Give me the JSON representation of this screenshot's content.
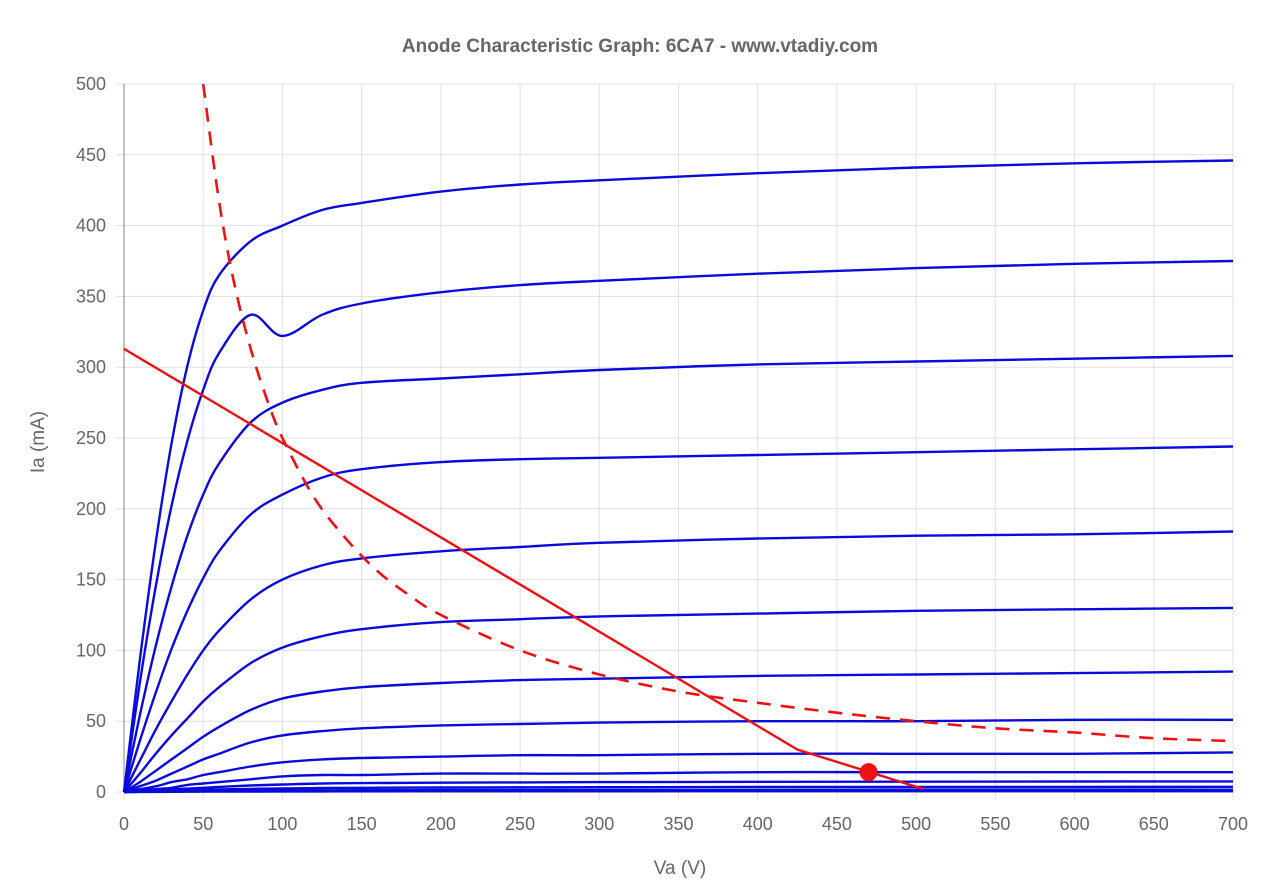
{
  "chart_data": {
    "type": "line",
    "title": "Anode Characteristic Graph: 6CA7 - www.vtadiy.com",
    "xlabel": "Va (V)",
    "ylabel": "Ia (mA)",
    "xlim": [
      0,
      700
    ],
    "ylim": [
      0,
      500
    ],
    "xticks": [
      "0",
      "50",
      "100",
      "150",
      "200",
      "250",
      "300",
      "350",
      "400",
      "450",
      "500",
      "550",
      "600",
      "650",
      "700"
    ],
    "yticks": [
      "0",
      "50",
      "100",
      "150",
      "200",
      "250",
      "300",
      "350",
      "400",
      "450",
      "500"
    ],
    "grid": true,
    "colors": {
      "curves": "#0a0adc",
      "load": "#ee1111",
      "grid": "#e0e0e0",
      "axis": "#999999"
    },
    "x": [
      0,
      10,
      20,
      30,
      40,
      50,
      60,
      80,
      100,
      125,
      150,
      200,
      250,
      300,
      400,
      500,
      600,
      700
    ],
    "series": [
      {
        "values": [
          0,
          93,
          176,
          246,
          301,
          340,
          365,
          389,
          400,
          411,
          416,
          424,
          429,
          432,
          437,
          441,
          444,
          446
        ]
      },
      {
        "values": [
          0,
          77,
          145,
          202,
          248,
          284,
          310,
          337,
          322,
          337,
          345,
          353,
          358,
          361,
          366,
          370,
          373,
          375
        ]
      },
      {
        "values": [
          0,
          54,
          103,
          145,
          181,
          210,
          232,
          261,
          275,
          284,
          289,
          292,
          295,
          298,
          302,
          304,
          306,
          308
        ]
      },
      {
        "values": [
          0,
          36,
          70,
          101,
          128,
          151,
          170,
          196,
          210,
          222,
          228,
          233,
          235,
          236,
          238,
          240,
          242,
          244
        ]
      },
      {
        "values": [
          0,
          22,
          44,
          64,
          83,
          100,
          114,
          136,
          150,
          160,
          165,
          170,
          173,
          176,
          179,
          181,
          182,
          184
        ]
      },
      {
        "values": [
          0,
          13,
          27,
          40,
          52,
          64,
          74,
          91,
          102,
          110,
          115,
          120,
          122,
          124,
          126,
          128,
          129,
          130
        ]
      },
      {
        "values": [
          0,
          7,
          15,
          23,
          31,
          39,
          46,
          58,
          66,
          71,
          74,
          77,
          79,
          80,
          82,
          83,
          84,
          85
        ]
      },
      {
        "values": [
          0,
          4,
          8,
          13,
          18,
          23,
          27,
          35,
          40,
          43,
          45,
          47,
          48,
          49,
          50,
          50,
          51,
          51
        ]
      },
      {
        "values": [
          0,
          2,
          4,
          7,
          9,
          12,
          14,
          18,
          21,
          23,
          24,
          25,
          26,
          26,
          27,
          27,
          27,
          28
        ]
      },
      {
        "values": [
          0,
          1,
          2,
          3,
          5,
          6,
          7,
          9,
          11,
          12,
          12,
          13,
          13,
          13,
          14,
          14,
          14,
          14
        ]
      },
      {
        "values": [
          0,
          0.6,
          1.2,
          1.8,
          2.4,
          3,
          3.6,
          4.6,
          5.3,
          6,
          6.3,
          6.6,
          6.8,
          7,
          7.2,
          7.3,
          7.4,
          7.5
        ]
      },
      {
        "values": [
          0,
          0.3,
          0.6,
          0.9,
          1.2,
          1.5,
          1.8,
          2.2,
          2.5,
          2.8,
          3,
          3.2,
          3.3,
          3.4,
          3.5,
          3.6,
          3.6,
          3.7
        ]
      },
      {
        "values": [
          0,
          0.15,
          0.3,
          0.45,
          0.6,
          0.7,
          0.8,
          1,
          1.1,
          1.2,
          1.3,
          1.4,
          1.4,
          1.5,
          1.5,
          1.6,
          1.6,
          1.6
        ]
      },
      {
        "values": [
          0,
          0.05,
          0.1,
          0.15,
          0.2,
          0.25,
          0.3,
          0.35,
          0.4,
          0.45,
          0.5,
          0.55,
          0.6,
          0.6,
          0.65,
          0.65,
          0.7,
          0.7
        ]
      }
    ],
    "max_dissipation_curve": {
      "style": "dashed",
      "x": [
        50,
        60,
        70,
        80,
        90,
        100,
        120,
        140,
        160,
        180,
        200,
        250,
        300,
        350,
        400,
        450,
        500,
        550,
        600,
        650,
        700
      ],
      "y": [
        500,
        417,
        357,
        313,
        278,
        250,
        208,
        179,
        156,
        139,
        125,
        100,
        83,
        71,
        63,
        56,
        50,
        45,
        42,
        38,
        36
      ]
    },
    "load_line": {
      "x": [
        0,
        425,
        505
      ],
      "y": [
        313,
        30,
        2
      ]
    },
    "operating_point": {
      "x": 470,
      "y": 14
    }
  }
}
